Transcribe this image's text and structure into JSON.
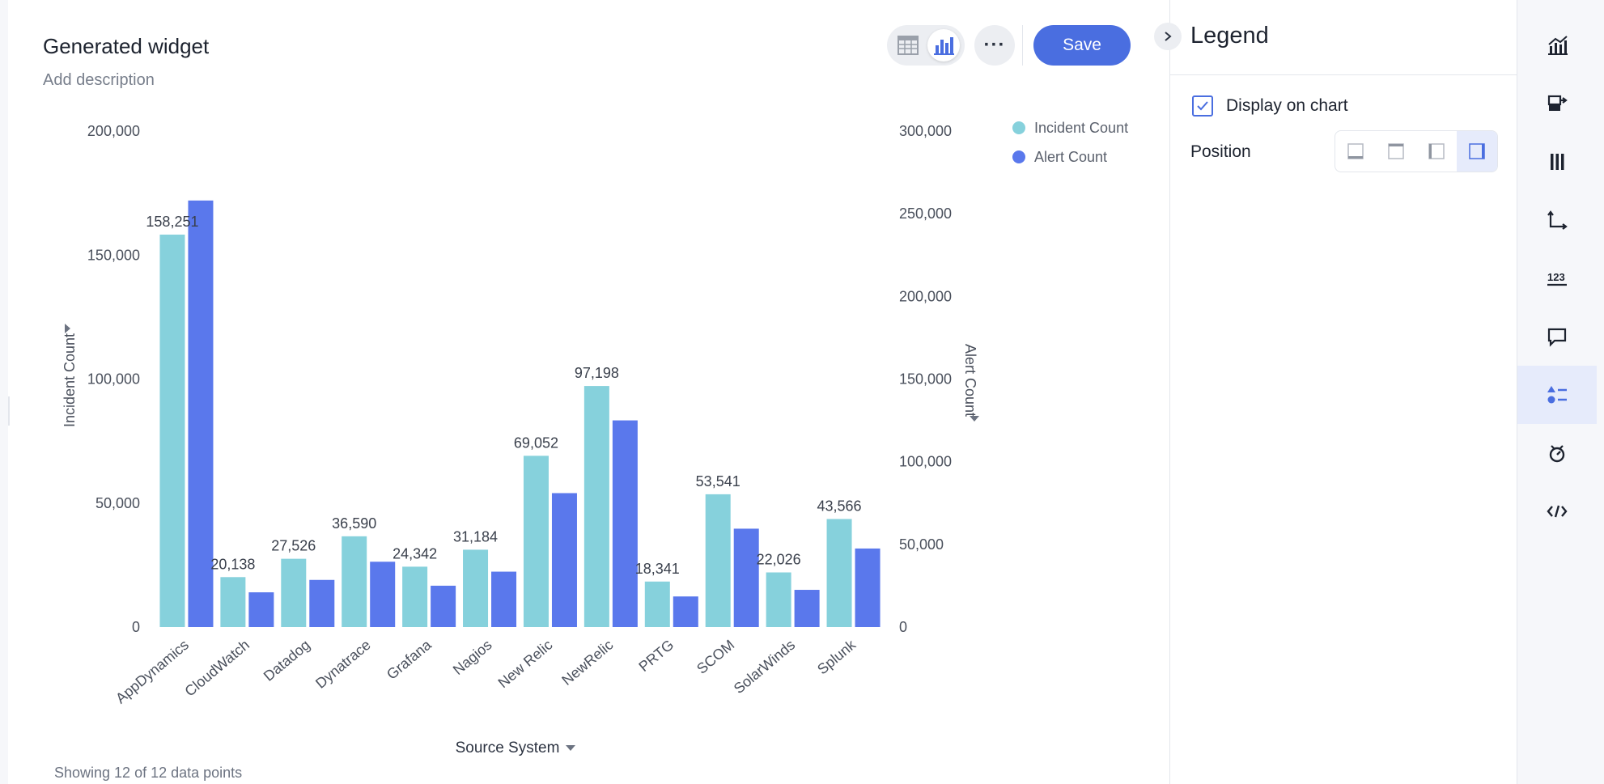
{
  "widget": {
    "title": "Generated widget",
    "description_placeholder": "Add description",
    "save_label": "Save",
    "more_label": "···",
    "footer_note": "Showing 12 of 12 data points"
  },
  "colors": {
    "incident": "#86d1dc",
    "alert": "#5a78ec",
    "accent": "#4a6ee0"
  },
  "legend_panel": {
    "title": "Legend",
    "display_on_chart_label": "Display on chart",
    "display_on_chart": true,
    "position_label": "Position",
    "position_options": [
      "bottom",
      "top",
      "left",
      "right"
    ],
    "position_selected": "right"
  },
  "right_rail": {
    "items": [
      "chart-type-icon",
      "swap-icon",
      "columns-icon",
      "axes-icon",
      "number-format-icon",
      "tooltip-icon",
      "legend-icon",
      "conditional-format-icon",
      "code-icon"
    ],
    "active": "legend-icon"
  },
  "chart_data": {
    "type": "bar",
    "categories": [
      "AppDynamics",
      "CloudWatch",
      "Datadog",
      "Dynatrace",
      "Grafana",
      "Nagios",
      "New Relic",
      "NewRelic",
      "PRTG",
      "SCOM",
      "SolarWinds",
      "Splunk"
    ],
    "series": [
      {
        "name": "Incident Count",
        "axis": "left",
        "values": [
          158251,
          20138,
          27526,
          36590,
          24342,
          31184,
          69052,
          97198,
          18341,
          53541,
          22026,
          43566
        ],
        "data_labels": [
          "158,251",
          "20,138",
          "27,526",
          "36,590",
          "24,342",
          "31,184",
          "69,052",
          "97,198",
          "18,341",
          "53,541",
          "22,026",
          "43,566"
        ]
      },
      {
        "name": "Alert Count",
        "axis": "right",
        "values": [
          258000,
          21000,
          28500,
          39500,
          25000,
          33500,
          81000,
          125000,
          18500,
          59500,
          22500,
          47500
        ]
      }
    ],
    "xlabel": "Source System",
    "ylabel_left": "Incident Count",
    "ylabel_right": "Alert Count",
    "ylim_left": [
      0,
      200000
    ],
    "ylim_right": [
      0,
      300000
    ],
    "yticks_left": [
      "0",
      "50,000",
      "100,000",
      "150,000",
      "200,000"
    ],
    "yticks_right": [
      "0",
      "50,000",
      "100,000",
      "150,000",
      "200,000",
      "250,000",
      "300,000"
    ],
    "legend": {
      "position": "top-right",
      "entries": [
        "Incident Count",
        "Alert Count"
      ]
    },
    "grid": false
  }
}
